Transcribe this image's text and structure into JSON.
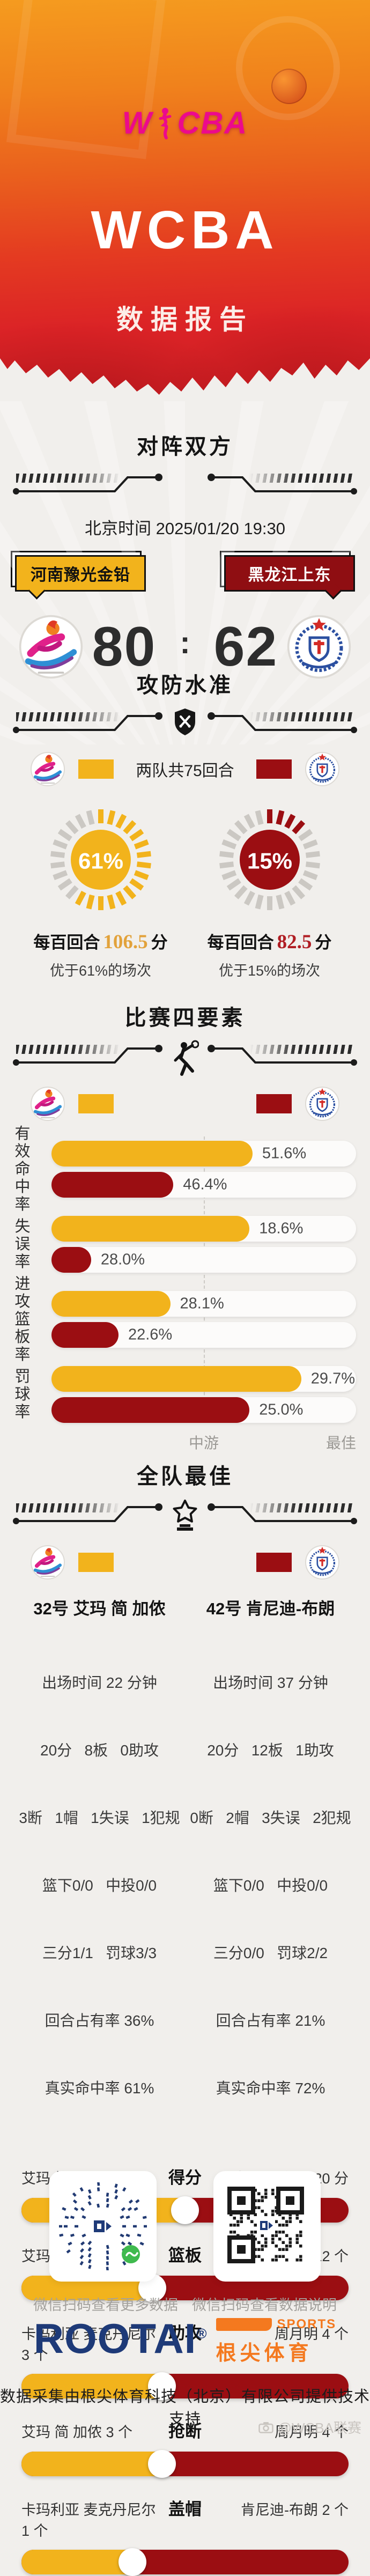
{
  "hero": {
    "logo_w": "W",
    "logo_cba": "CBA",
    "title": "WCBA",
    "subtitle": "数据报告",
    "brand_pink": "#EC0A8C"
  },
  "teams": {
    "home": {
      "name": "河南豫光金铅",
      "color": "#F2B31C"
    },
    "away": {
      "name": "黑龙江上东",
      "color": "#9B0E12"
    }
  },
  "matchup": {
    "section_title": "对阵双方",
    "datetime": "北京时间 2025/01/20 19:30",
    "home_score": "80",
    "score_separator": ":",
    "away_score": "62"
  },
  "pace": {
    "section_title": "攻防水准",
    "note": "两队共75回合",
    "home": {
      "pct": 61,
      "pct_label": "61%",
      "line_prefix": "每百回合",
      "line_value": "106.5",
      "line_suffix": "分",
      "better": "优于61%的场次"
    },
    "away": {
      "pct": 15,
      "pct_label": "15%",
      "line_prefix": "每百回合",
      "line_value": "82.5",
      "line_suffix": "分",
      "better": "优于15%的场次"
    }
  },
  "four_factors": {
    "section_title": "比赛四要素",
    "axis_mid": "中游",
    "axis_best": "最佳",
    "rows": [
      {
        "label": "有效命中率",
        "home": {
          "value": "51.6%",
          "bar": 66
        },
        "away": {
          "value": "46.4%",
          "bar": 40
        }
      },
      {
        "label": "失误率",
        "home": {
          "value": "18.6%",
          "bar": 65
        },
        "away": {
          "value": "28.0%",
          "bar": 13
        }
      },
      {
        "label": "进攻篮板率",
        "home": {
          "value": "28.1%",
          "bar": 39
        },
        "away": {
          "value": "22.6%",
          "bar": 22
        }
      },
      {
        "label": "罚球率",
        "home": {
          "value": "29.7%",
          "bar": 82
        },
        "away": {
          "value": "25.0%",
          "bar": 65
        }
      }
    ]
  },
  "best": {
    "section_title": "全队最佳",
    "home_player": {
      "name": "32号 艾玛 简 加侬",
      "stats": [
        "出场时间 22 分钟",
        "20分   8板   0助攻",
        "3断   1帽   1失误   1犯规",
        "篮下0/0   中投0/0",
        "三分1/1   罚球3/3",
        "回合占有率 36%",
        "真实命中率 61%"
      ]
    },
    "away_player": {
      "name": "42号 肯尼迪-布朗",
      "stats": [
        "出场时间 37 分钟",
        "20分   12板   1助攻",
        "0断   2帽   3失误   2犯规",
        "篮下0/0   中投0/0",
        "三分0/0   罚球2/2",
        "回合占有率 21%",
        "真实命中率 72%"
      ]
    },
    "comparisons": [
      {
        "label": "得分",
        "left": "艾玛 简 加侬 20 分",
        "right": "肯尼迪-布朗 20 分",
        "left_pct": 50
      },
      {
        "label": "篮板",
        "left": "艾玛 简 加侬 8 个",
        "right": "肯尼迪-布朗 12 个",
        "left_pct": 40
      },
      {
        "label": "助攻",
        "left": "卡玛利亚 麦克丹尼尔 3 个",
        "right": "周月明 4 个",
        "left_pct": 43
      },
      {
        "label": "抢断",
        "left": "艾玛 简 加侬 3 个",
        "right": "周月明 4 个",
        "left_pct": 43
      },
      {
        "label": "盖帽",
        "left": "卡玛利亚 麦克丹尼尔 1 个",
        "right": "肯尼迪-布朗 2 个",
        "left_pct": 34
      }
    ]
  },
  "qr": {
    "left_caption": "微信扫码查看更多数据",
    "right_caption": "微信扫码查看数据说明"
  },
  "footer": {
    "brand": "ROOTAI",
    "reg": "®",
    "brand_sub": "SPORTS",
    "brand_cn": "根尖体育",
    "support": "数据采集由根尖体育科技（北京）有限公司提供技术支持",
    "watermark": "@WCBA联赛"
  },
  "chart_data": [
    {
      "type": "gauge",
      "title": "攻防水准",
      "note": "两队共75回合",
      "series": [
        {
          "name": "河南豫光金铅",
          "percentile": 61,
          "points_per_100": 106.5,
          "caption": "每百回合 106.5 分",
          "sub_caption": "优于61%的场次"
        },
        {
          "name": "黑龙江上东",
          "percentile": 15,
          "points_per_100": 82.5,
          "caption": "每百回合 82.5 分",
          "sub_caption": "优于15%的场次"
        }
      ]
    },
    {
      "type": "bar",
      "title": "比赛四要素",
      "orientation": "horizontal",
      "categories": [
        "有效命中率",
        "失误率",
        "进攻篮板率",
        "罚球率"
      ],
      "series": [
        {
          "name": "河南豫光金铅",
          "values": [
            51.6,
            18.6,
            28.1,
            29.7
          ],
          "bar_fill_pct_of_track": [
            66,
            65,
            39,
            82
          ],
          "color": "#F2B31C"
        },
        {
          "name": "黑龙江上东",
          "values": [
            46.4,
            28.0,
            22.6,
            25.0
          ],
          "bar_fill_pct_of_track": [
            40,
            13,
            22,
            65
          ],
          "color": "#9B0E12"
        }
      ],
      "value_unit": "%",
      "axis_labels": [
        "中游",
        "最佳"
      ],
      "grid": "center dashed line at 中游 (league median), right edge = 最佳"
    },
    {
      "type": "slider-compare",
      "title": "全队最佳",
      "rows": [
        {
          "metric": "得分",
          "home_player": "艾玛 简 加侬",
          "home_value": 20,
          "away_player": "肯尼迪-布朗",
          "away_value": 20
        },
        {
          "metric": "篮板",
          "home_player": "艾玛 简 加侬",
          "home_value": 8,
          "away_player": "肯尼迪-布朗",
          "away_value": 12
        },
        {
          "metric": "助攻",
          "home_player": "卡玛利亚 麦克丹尼尔",
          "home_value": 3,
          "away_player": "周月明",
          "away_value": 4
        },
        {
          "metric": "抢断",
          "home_player": "艾玛 简 加侬",
          "home_value": 3,
          "away_player": "周月明",
          "away_value": 4
        },
        {
          "metric": "盖帽",
          "home_player": "卡玛利亚 麦克丹尼尔",
          "home_value": 1,
          "away_player": "肯尼迪-布朗",
          "away_value": 2
        }
      ]
    }
  ]
}
